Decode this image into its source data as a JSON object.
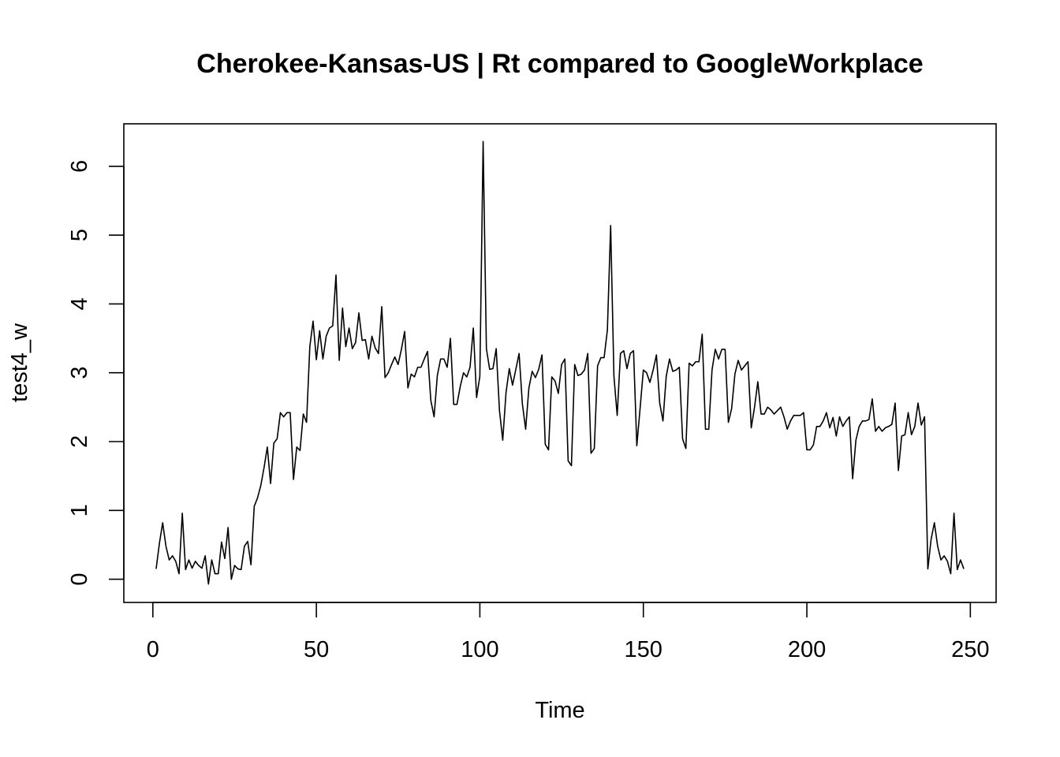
{
  "chart_data": {
    "type": "line",
    "title": "Cherokee-Kansas-US | Rt compared to GoogleWorkplace",
    "xlabel": "Time",
    "ylabel": "test4_w",
    "xlim": [
      1,
      248
    ],
    "ylim": [
      -0.08,
      6.36
    ],
    "x_ticks": [
      0,
      50,
      100,
      150,
      200,
      250
    ],
    "y_ticks": [
      0,
      1,
      2,
      3,
      4,
      5,
      6
    ],
    "grid": false,
    "line_color": "#000000",
    "series": [
      {
        "x_start": 1,
        "values": [
          0.15,
          0.52,
          0.82,
          0.48,
          0.28,
          0.34,
          0.26,
          0.08,
          0.96,
          0.14,
          0.28,
          0.16,
          0.26,
          0.2,
          0.16,
          0.34,
          -0.07,
          0.28,
          0.08,
          0.08,
          0.54,
          0.3,
          0.75,
          0.0,
          0.2,
          0.15,
          0.14,
          0.48,
          0.55,
          0.21,
          1.06,
          1.18,
          1.36,
          1.62,
          1.92,
          1.39,
          1.98,
          2.04,
          2.42,
          2.36,
          2.42,
          2.42,
          1.45,
          1.92,
          1.87,
          2.4,
          2.28,
          3.38,
          3.75,
          3.19,
          3.61,
          3.2,
          3.53,
          3.65,
          3.68,
          4.42,
          3.18,
          3.94,
          3.38,
          3.65,
          3.35,
          3.44,
          3.87,
          3.47,
          3.48,
          3.2,
          3.53,
          3.36,
          3.28,
          3.96,
          2.93,
          3.0,
          3.12,
          3.23,
          3.12,
          3.34,
          3.6,
          2.78,
          2.98,
          2.94,
          3.08,
          3.08,
          3.2,
          3.31,
          2.6,
          2.36,
          2.96,
          3.2,
          3.2,
          3.08,
          3.5,
          2.54,
          2.54,
          2.8,
          3.0,
          2.94,
          3.08,
          3.65,
          2.64,
          2.95,
          6.36,
          3.35,
          3.05,
          3.06,
          3.35,
          2.45,
          2.02,
          2.71,
          3.06,
          2.82,
          3.05,
          3.28,
          2.55,
          2.18,
          2.78,
          3.02,
          2.93,
          3.05,
          3.26,
          1.96,
          1.88,
          2.94,
          2.88,
          2.7,
          3.12,
          3.2,
          1.72,
          1.65,
          3.12,
          2.96,
          2.98,
          3.04,
          3.28,
          1.83,
          1.9,
          3.1,
          3.22,
          3.22,
          3.62,
          5.14,
          2.95,
          2.38,
          3.28,
          3.32,
          3.06,
          3.28,
          3.32,
          1.94,
          2.48,
          3.04,
          3.0,
          2.86,
          3.04,
          3.26,
          2.56,
          2.3,
          2.95,
          3.2,
          3.02,
          3.04,
          3.08,
          2.04,
          1.9,
          3.14,
          3.1,
          3.16,
          3.16,
          3.56,
          2.18,
          2.18,
          3.04,
          3.34,
          3.2,
          3.34,
          3.34,
          2.28,
          2.48,
          2.98,
          3.18,
          3.04,
          3.1,
          3.16,
          2.2,
          2.5,
          2.87,
          2.4,
          2.4,
          2.5,
          2.46,
          2.4,
          2.45,
          2.5,
          2.36,
          2.18,
          2.3,
          2.38,
          2.38,
          2.38,
          2.42,
          1.88,
          1.88,
          1.95,
          2.22,
          2.22,
          2.3,
          2.42,
          2.2,
          2.35,
          2.08,
          2.36,
          2.22,
          2.3,
          2.36,
          1.46,
          2.02,
          2.22,
          2.3,
          2.3,
          2.32,
          2.62,
          2.15,
          2.22,
          2.15,
          2.2,
          2.22,
          2.25,
          2.56,
          1.58,
          2.08,
          2.1,
          2.42,
          2.1,
          2.22,
          2.56,
          2.24,
          2.36,
          0.15,
          0.58,
          0.82,
          0.48,
          0.28,
          0.34,
          0.26,
          0.08,
          0.96,
          0.14,
          0.28,
          0.15
        ]
      }
    ]
  }
}
